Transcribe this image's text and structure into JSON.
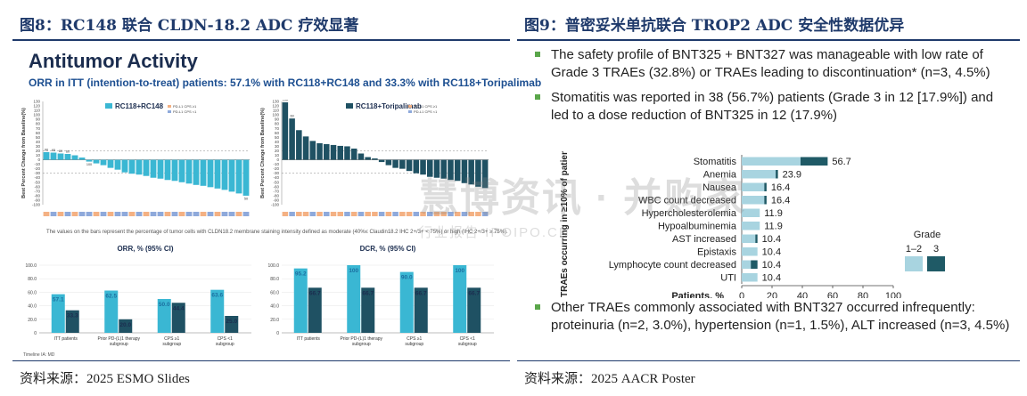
{
  "left_panel": {
    "figure_title": "图8：RC148 联合 CLDN-18.2 ADC 疗效显著",
    "source": "资料来源：2025 ESMO Slides",
    "slide_heading": "Antitumor Activity",
    "slide_subtitle": "ORR in ITT (intention-to-treat) patients: 57.1% with RC118+RC148 and 33.3% with RC118+Toripalimab",
    "waterfall_footnote": "The values on the bars represent the percentage of tumor cells with CLDN18.2 membrane staining intensity defined as moderate (40%≤ Claudin18.2 IHC 2+/3+ < 75%) or high (IHC 2+/3+ ≥ 75%).",
    "table_caption": "Timeline IA: MD",
    "colors": {
      "rc148": "#3ab7d3",
      "toripalimab": "#1f5163",
      "pdl1_high": "#f4b183",
      "pdl1_low": "#8ea9db"
    }
  },
  "right_panel": {
    "figure_title": "图9：普密妥米单抗联合 TROP2 ADC 安全性数据优异",
    "source": "资料来源：2025 AACR Poster",
    "bullets_top": [
      "The safety profile of BNT325 + BNT327 was manageable with low rate of Grade 3 TRAEs (32.8%) or TRAEs leading to discontinuation* (n=3, 4.5%)",
      "Stomatitis was reported in 38 (56.7%) patients (Grade 3 in 12 [17.9%]) and led to a dose reduction of BNT325 in 12 (17.9%)"
    ],
    "bullets_bottom": [
      "Other TRAEs commonly associated with BNT327 occurred infrequently: proteinuria (n=2, 3.0%), hypertension (n=1, 1.5%), ALT increased (n=3, 4.5%)"
    ],
    "legend_title": "Grade",
    "legend_labels": [
      "1–2",
      "3"
    ],
    "colors": {
      "grade12": "#a8d4e0",
      "grade3": "#1f5a66",
      "bullet": "#5aa64a"
    }
  },
  "watermark": {
    "main": "慧博资讯 · 并购家",
    "sub": "行业报告 IPOIPO.CN"
  },
  "chart_data": [
    {
      "type": "bar",
      "subtype": "waterfall",
      "legend": [
        "RC118+RC148",
        "PD-L1 CPS ≥1",
        "PD-L1 CPS <1"
      ],
      "ylabel": "Best Percent Change from Baseline(%)",
      "ylim": [
        -100,
        130
      ],
      "yticks": [
        130,
        120,
        110,
        100,
        90,
        80,
        70,
        60,
        50,
        40,
        30,
        20,
        10,
        0,
        -10,
        -20,
        -30,
        -40,
        -50,
        -60,
        -70,
        -80,
        -90,
        -100
      ],
      "reference_lines": [
        20,
        -30
      ],
      "values": [
        17,
        16,
        14,
        13,
        10,
        5,
        -4,
        -8,
        -12,
        -18,
        -22,
        -28,
        -31,
        -33,
        -36,
        -40,
        -42,
        -45,
        -47,
        -50,
        -53,
        -56,
        -58,
        -61,
        -64,
        -67,
        -71,
        -75,
        -80
      ],
      "bar_labels": [
        "90",
        "65",
        "80",
        "60",
        "",
        "",
        "100",
        "",
        "",
        "",
        "",
        "",
        "",
        "",
        "",
        "",
        "",
        "",
        "",
        "",
        "",
        "",
        "",
        "",
        "",
        "",
        "",
        "",
        "50"
      ],
      "pdl1_markers": [
        "high",
        "low",
        "high",
        "low",
        "high",
        "low",
        "low",
        "high",
        "low",
        "high",
        "low",
        "low",
        "high",
        "low",
        "high",
        "low",
        "low",
        "high",
        "low",
        "high",
        "low",
        "low",
        "high",
        "low",
        "high",
        "low",
        "low",
        "high",
        "low"
      ]
    },
    {
      "type": "bar",
      "subtype": "waterfall",
      "legend": [
        "RC118+Toripalimab",
        "PD-L1 CPS ≥1",
        "PD-L1 CPS <1"
      ],
      "ylabel": "Best Percent Change from Baseline(%)",
      "ylim": [
        -100,
        130
      ],
      "yticks": [
        130,
        120,
        110,
        100,
        90,
        80,
        70,
        60,
        50,
        40,
        30,
        20,
        10,
        0,
        -10,
        -20,
        -30,
        -40,
        -50,
        -60,
        -70,
        -80,
        -90,
        -100
      ],
      "reference_lines": [
        20,
        -30
      ],
      "values": [
        128,
        92,
        66,
        52,
        42,
        37,
        35,
        33,
        31,
        30,
        25,
        14,
        6,
        3,
        -5,
        -12,
        -18,
        -20,
        -25,
        -30,
        -33,
        -38,
        -40,
        -42,
        -45,
        -47,
        -52,
        -55,
        -60,
        -63
      ],
      "bar_labels": [
        "100",
        "60",
        "",
        "",
        "",
        "",
        "",
        "",
        "",
        "",
        "",
        "",
        "",
        "",
        "",
        "",
        "",
        "",
        "",
        "",
        "",
        "",
        "",
        "",
        "",
        "",
        "",
        "",
        "",
        ""
      ],
      "pdl1_markers": [
        "high",
        "low",
        "high",
        "high",
        "low",
        "high",
        "low",
        "high",
        "high",
        "low",
        "high",
        "low",
        "high",
        "high",
        "low",
        "high",
        "low",
        "high",
        "high",
        "low",
        "high",
        "low",
        "high",
        "high",
        "low",
        "high",
        "low",
        "high",
        "high",
        "low"
      ]
    },
    {
      "type": "bar",
      "title": "ORR, % (95% CI)",
      "categories": [
        "ITT patients",
        "Prior PD-(L)1 therapy subgroup",
        "CPS ≥1 subgroup",
        "CPS <1 subgroup"
      ],
      "series": [
        {
          "name": "RC118+RC148",
          "values": [
            57.1,
            62.5,
            50.0,
            63.6
          ]
        },
        {
          "name": "RC118+Toripalimab",
          "values": [
            33.3,
            20.0,
            44.4,
            25.0
          ]
        }
      ],
      "yticks": [
        "0",
        "20.0",
        "40.0",
        "60.0",
        "80.0",
        "100.0"
      ],
      "ylim": [
        0,
        100
      ]
    },
    {
      "type": "bar",
      "title": "DCR, % (95% CI)",
      "categories": [
        "ITT patients",
        "Prior PD-(L)1 therapy subgroup",
        "CPS ≥1 subgroup",
        "CPS <1 subgroup"
      ],
      "series": [
        {
          "name": "RC118+RC148",
          "values": [
            95.2,
            100,
            90.0,
            100
          ]
        },
        {
          "name": "RC118+Toripalimab",
          "values": [
            66.7,
            66.7,
            66.7,
            66.7
          ]
        }
      ],
      "yticks": [
        "0",
        "20.0",
        "40.0",
        "60.0",
        "80.0",
        "100.0"
      ],
      "ylim": [
        0,
        100
      ]
    },
    {
      "type": "bar",
      "orientation": "horizontal",
      "stacked": true,
      "categories": [
        "Stomatitis",
        "Anemia",
        "Nausea",
        "WBC count decreased",
        "Hypercholesterolemia",
        "Hypoalbuminemia",
        "AST increased",
        "Epistaxis",
        "Lymphocyte count decreased",
        "UTI"
      ],
      "totals": [
        56.7,
        23.9,
        16.4,
        16.4,
        11.9,
        11.9,
        10.4,
        10.4,
        10.4,
        10.4
      ],
      "series": [
        {
          "name": "1–2",
          "values": [
            38.8,
            22.4,
            14.9,
            14.9,
            11.9,
            11.9,
            9.0,
            10.4,
            6.0,
            10.4
          ]
        },
        {
          "name": "3",
          "values": [
            17.9,
            1.5,
            1.5,
            1.5,
            0,
            0,
            1.4,
            0,
            4.4,
            0
          ]
        }
      ],
      "xlabel": "Patients, %",
      "ylabel": "TRAEs occurring in ≥10% of patients",
      "xticks": [
        0,
        20,
        40,
        60,
        80,
        100
      ],
      "xlim": [
        0,
        100
      ],
      "legend_title": "Grade"
    }
  ]
}
